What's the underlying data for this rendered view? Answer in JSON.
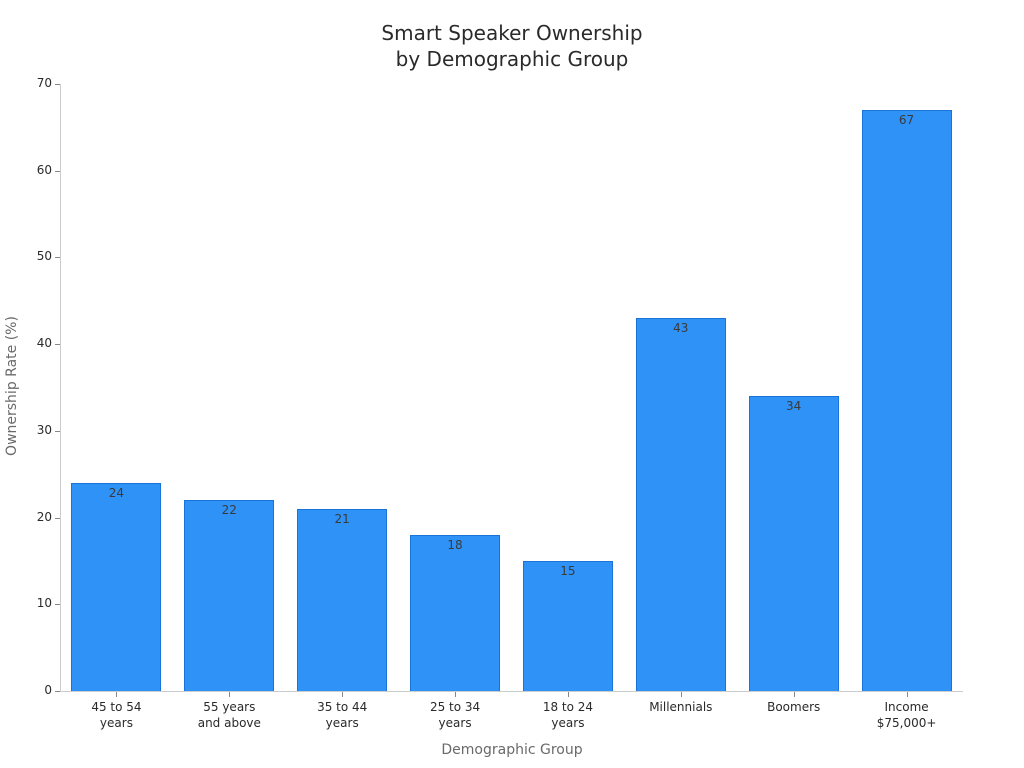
{
  "chart_data": {
    "type": "bar",
    "title": "Smart Speaker Ownership\nby Demographic Group",
    "title_lines": [
      "Smart Speaker Ownership",
      "by Demographic Group"
    ],
    "xlabel": "Demographic Group",
    "ylabel": "Ownership Rate (%)",
    "categories": [
      "45 to 54\nyears",
      "55 years\nand above",
      "35 to 44\nyears",
      "25 to 34\nyears",
      "18 to 24\nyears",
      "Millennials",
      "Boomers",
      "Income\n$75,000+"
    ],
    "values": [
      24,
      22,
      21,
      18,
      15,
      43,
      34,
      67
    ],
    "data_labels": [
      "24",
      "22",
      "21",
      "18",
      "15",
      "43",
      "34",
      "67"
    ],
    "ylim": [
      0,
      70
    ],
    "yticks": [
      0,
      10,
      20,
      30,
      40,
      50,
      60,
      70
    ],
    "ytick_labels": [
      "0",
      "10",
      "20",
      "30",
      "40",
      "50",
      "60",
      "70"
    ],
    "grid": false,
    "legend": null,
    "bar_color": "#2f92f7"
  }
}
